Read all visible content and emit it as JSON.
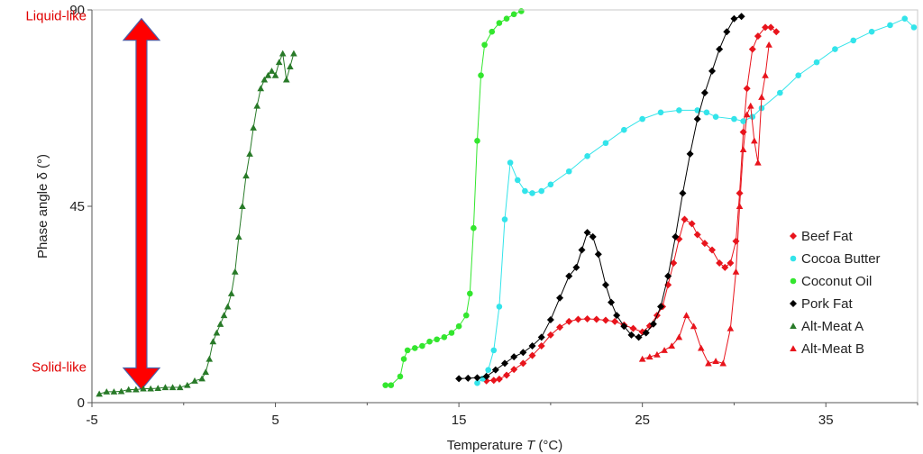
{
  "chart_data": {
    "type": "scatter",
    "xlabel_prefix": "Temperature ",
    "xlabel_var": "T",
    "xlabel_suffix": " (°C)",
    "ylabel_prefix": "Phase angle ",
    "ylabel_var": "δ",
    "ylabel_suffix": " (°)",
    "xlim": [
      -5,
      40
    ],
    "ylim": [
      0,
      90
    ],
    "xticks": [
      -5,
      5,
      15,
      25,
      35
    ],
    "yticks": [
      0,
      45,
      90
    ],
    "grid": false,
    "legend_position": "right",
    "annotations": {
      "top_label": "Liquid-like",
      "bottom_label": "Solid-like",
      "arrow_color": "#ff0000",
      "arrow_x": -2.3,
      "arrow_y_range": [
        3,
        88
      ]
    },
    "series": [
      {
        "name": "Beef Fat",
        "color": "#e8141c",
        "marker": "diamond",
        "points": [
          [
            16.5,
            5
          ],
          [
            16.9,
            5.1
          ],
          [
            17.2,
            5.4
          ],
          [
            17.6,
            6.3
          ],
          [
            18,
            7.6
          ],
          [
            18.5,
            9
          ],
          [
            19,
            10.8
          ],
          [
            19.5,
            13
          ],
          [
            20,
            15.5
          ],
          [
            20.5,
            17.3
          ],
          [
            21,
            18.6
          ],
          [
            21.5,
            19.1
          ],
          [
            22,
            19.2
          ],
          [
            22.5,
            19.1
          ],
          [
            23,
            18.9
          ],
          [
            23.5,
            18.6
          ],
          [
            24,
            17.8
          ],
          [
            24.5,
            17
          ],
          [
            25,
            16.2
          ],
          [
            25.4,
            17.6
          ],
          [
            25.8,
            20
          ],
          [
            26.1,
            22
          ],
          [
            26.4,
            27
          ],
          [
            26.7,
            32
          ],
          [
            27,
            37.5
          ],
          [
            27.3,
            42
          ],
          [
            27.7,
            41
          ],
          [
            28,
            38.5
          ],
          [
            28.4,
            36.5
          ],
          [
            28.8,
            35
          ],
          [
            29.2,
            32
          ],
          [
            29.5,
            31
          ],
          [
            29.8,
            32
          ],
          [
            30.1,
            37
          ],
          [
            30.3,
            48
          ],
          [
            30.5,
            62
          ],
          [
            30.7,
            72
          ],
          [
            31,
            81
          ],
          [
            31.3,
            84
          ],
          [
            31.7,
            86
          ],
          [
            32,
            86
          ],
          [
            32.3,
            85
          ]
        ]
      },
      {
        "name": "Cocoa Butter",
        "color": "#33e4ea",
        "marker": "circle",
        "points": [
          [
            16,
            4.5
          ],
          [
            16.3,
            5.5
          ],
          [
            16.6,
            7.5
          ],
          [
            16.9,
            12
          ],
          [
            17.2,
            22
          ],
          [
            17.5,
            42
          ],
          [
            17.8,
            55
          ],
          [
            18.2,
            51
          ],
          [
            18.6,
            48.5
          ],
          [
            19,
            48
          ],
          [
            19.5,
            48.5
          ],
          [
            20,
            50
          ],
          [
            21,
            53
          ],
          [
            22,
            56.5
          ],
          [
            23,
            59.5
          ],
          [
            24,
            62.5
          ],
          [
            25,
            65
          ],
          [
            26,
            66.5
          ],
          [
            27,
            67
          ],
          [
            28,
            67
          ],
          [
            28.5,
            66.5
          ],
          [
            29,
            65.5
          ],
          [
            30,
            65
          ],
          [
            30.5,
            64.5
          ],
          [
            31,
            65.5
          ],
          [
            31.5,
            67.5
          ],
          [
            32.5,
            71
          ],
          [
            33.5,
            75
          ],
          [
            34.5,
            78
          ],
          [
            35.5,
            81
          ],
          [
            36.5,
            83
          ],
          [
            37.5,
            85
          ],
          [
            38.5,
            86.5
          ],
          [
            39.3,
            88
          ],
          [
            39.8,
            86
          ]
        ]
      },
      {
        "name": "Coconut Oil",
        "color": "#33e62e",
        "marker": "circle",
        "points": [
          [
            11,
            4
          ],
          [
            11.3,
            4
          ],
          [
            11.8,
            6
          ],
          [
            12,
            10
          ],
          [
            12.2,
            12
          ],
          [
            12.6,
            12.5
          ],
          [
            13,
            13
          ],
          [
            13.4,
            14
          ],
          [
            13.8,
            14.5
          ],
          [
            14.2,
            15
          ],
          [
            14.6,
            16
          ],
          [
            15,
            17.5
          ],
          [
            15.4,
            20
          ],
          [
            15.6,
            25
          ],
          [
            15.8,
            40
          ],
          [
            16,
            60
          ],
          [
            16.2,
            75
          ],
          [
            16.4,
            82
          ],
          [
            16.8,
            85
          ],
          [
            17.2,
            87
          ],
          [
            17.6,
            88
          ],
          [
            18,
            89
          ],
          [
            18.4,
            89.7
          ]
        ]
      },
      {
        "name": "Pork Fat",
        "color": "#000000",
        "marker": "diamond",
        "points": [
          [
            15,
            5.5
          ],
          [
            15.5,
            5.6
          ],
          [
            16,
            5.7
          ],
          [
            16.5,
            6
          ],
          [
            17,
            7.5
          ],
          [
            17.5,
            9
          ],
          [
            18,
            10.5
          ],
          [
            18.5,
            11.5
          ],
          [
            19,
            13
          ],
          [
            19.5,
            15
          ],
          [
            20,
            19
          ],
          [
            20.5,
            24
          ],
          [
            21,
            29
          ],
          [
            21.4,
            31
          ],
          [
            21.7,
            35
          ],
          [
            22,
            39
          ],
          [
            22.3,
            38
          ],
          [
            22.6,
            34
          ],
          [
            23,
            27
          ],
          [
            23.3,
            23
          ],
          [
            23.6,
            20
          ],
          [
            24,
            17.5
          ],
          [
            24.4,
            15.5
          ],
          [
            24.8,
            15
          ],
          [
            25.2,
            16
          ],
          [
            25.6,
            18
          ],
          [
            26,
            22
          ],
          [
            26.4,
            29
          ],
          [
            26.8,
            38
          ],
          [
            27.2,
            48
          ],
          [
            27.6,
            57
          ],
          [
            28,
            65
          ],
          [
            28.4,
            71
          ],
          [
            28.8,
            76
          ],
          [
            29.2,
            81
          ],
          [
            29.6,
            85
          ],
          [
            30,
            88
          ],
          [
            30.4,
            88.5
          ]
        ]
      },
      {
        "name": "Alt-Meat A",
        "color": "#287a28",
        "marker": "triangle",
        "points": [
          [
            -4.6,
            2
          ],
          [
            -4.2,
            2.5
          ],
          [
            -3.8,
            2.5
          ],
          [
            -3.4,
            2.6
          ],
          [
            -3,
            3
          ],
          [
            -2.6,
            3
          ],
          [
            -2.2,
            3.2
          ],
          [
            -1.8,
            3.2
          ],
          [
            -1.4,
            3.3
          ],
          [
            -1,
            3.5
          ],
          [
            -0.6,
            3.5
          ],
          [
            -0.2,
            3.5
          ],
          [
            0.2,
            4
          ],
          [
            0.6,
            5
          ],
          [
            1,
            5.5
          ],
          [
            1.2,
            7
          ],
          [
            1.4,
            10
          ],
          [
            1.6,
            14
          ],
          [
            1.8,
            16
          ],
          [
            2,
            18
          ],
          [
            2.2,
            20
          ],
          [
            2.4,
            22
          ],
          [
            2.6,
            25
          ],
          [
            2.8,
            30
          ],
          [
            3,
            38
          ],
          [
            3.2,
            45
          ],
          [
            3.4,
            52
          ],
          [
            3.6,
            57
          ],
          [
            3.8,
            63
          ],
          [
            4,
            68
          ],
          [
            4.2,
            72
          ],
          [
            4.4,
            74
          ],
          [
            4.6,
            75
          ],
          [
            4.8,
            76
          ],
          [
            5,
            75
          ],
          [
            5.2,
            78
          ],
          [
            5.4,
            80
          ],
          [
            5.6,
            74
          ],
          [
            5.8,
            77
          ],
          [
            6,
            80
          ]
        ]
      },
      {
        "name": "Alt-Meat B",
        "color": "#e8141c",
        "marker": "triangle",
        "points": [
          [
            25,
            10
          ],
          [
            25.4,
            10.5
          ],
          [
            25.8,
            11
          ],
          [
            26.2,
            12
          ],
          [
            26.6,
            13
          ],
          [
            27,
            15
          ],
          [
            27.4,
            20
          ],
          [
            27.8,
            17.5
          ],
          [
            28.2,
            12.5
          ],
          [
            28.6,
            9
          ],
          [
            29,
            9.5
          ],
          [
            29.4,
            9
          ],
          [
            29.8,
            17
          ],
          [
            30.1,
            30
          ],
          [
            30.3,
            45
          ],
          [
            30.5,
            58
          ],
          [
            30.7,
            66
          ],
          [
            30.9,
            68
          ],
          [
            31.1,
            60
          ],
          [
            31.3,
            55
          ],
          [
            31.5,
            70
          ],
          [
            31.7,
            75
          ],
          [
            31.9,
            82
          ]
        ]
      }
    ]
  }
}
